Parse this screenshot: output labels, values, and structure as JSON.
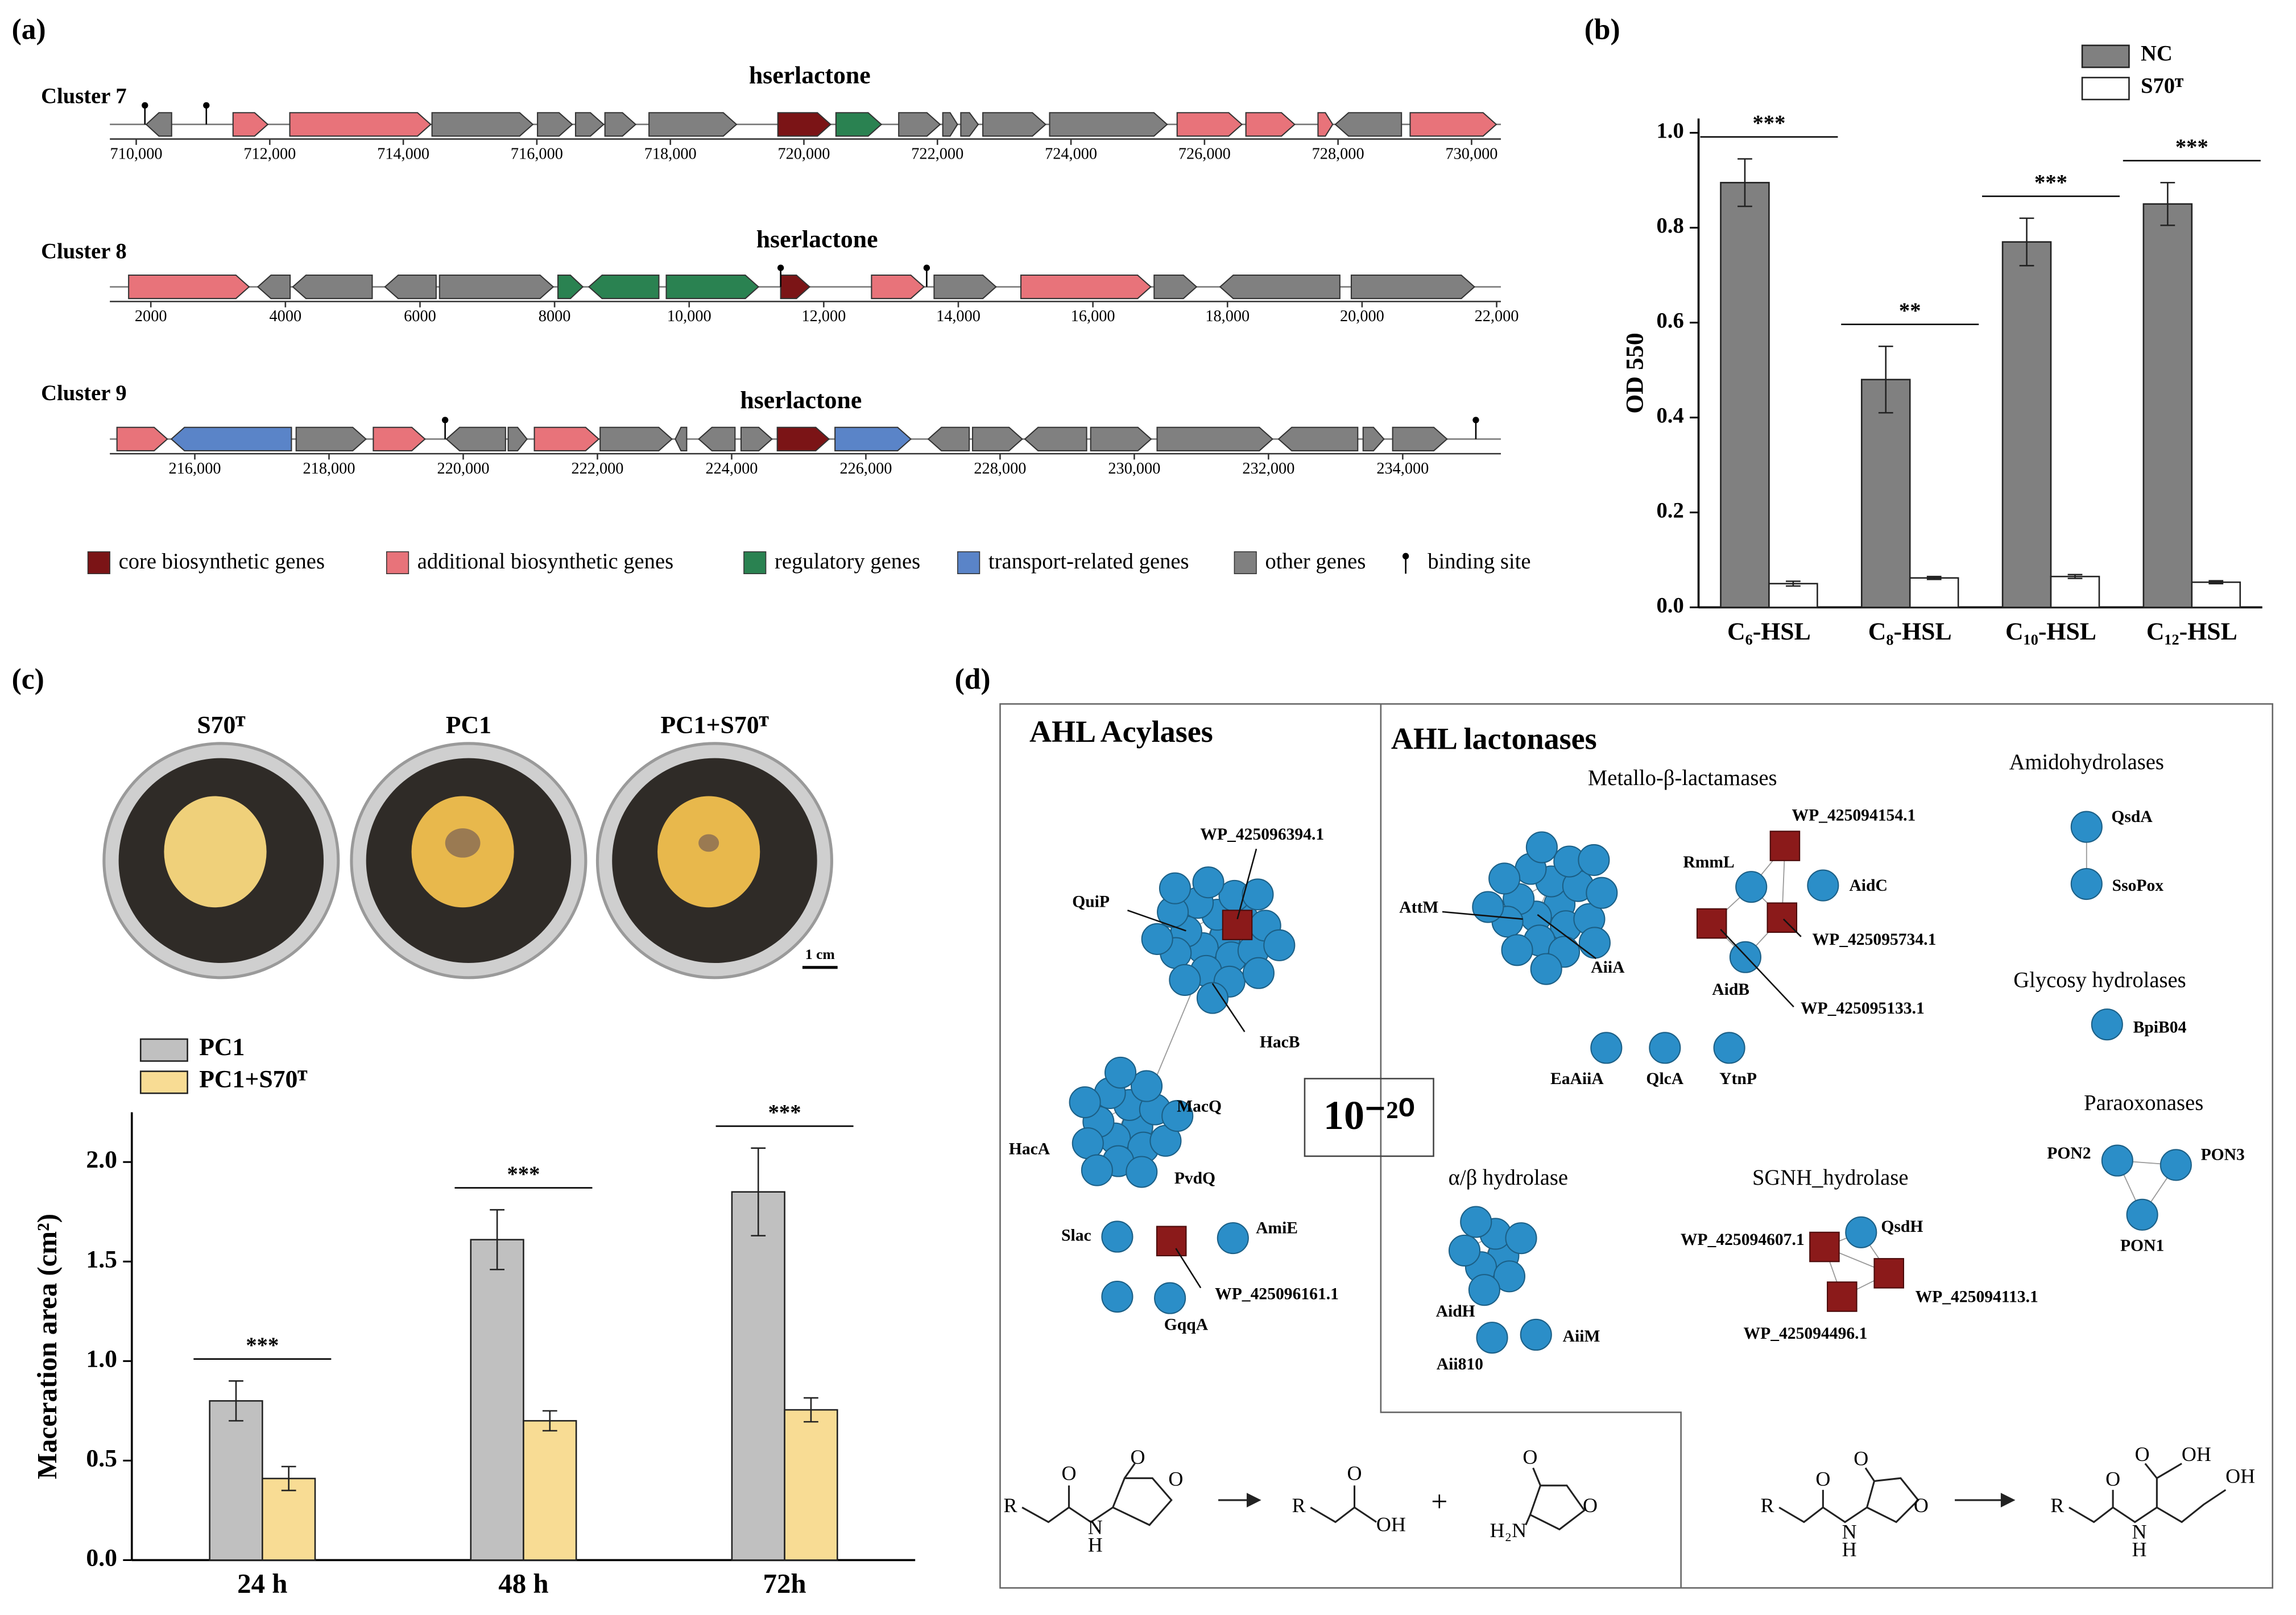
{
  "panel_labels": [
    "(a)",
    "(b)",
    "(c)",
    "(d)"
  ],
  "gene_clusters": {
    "categories": [
      {
        "name": "core biosynthetic genes",
        "color": "#7b1416"
      },
      {
        "name": "additional biosynthetic genes",
        "color": "#e8737a"
      },
      {
        "name": "regulatory genes",
        "color": "#2a8251"
      },
      {
        "name": "transport-related genes",
        "color": "#5a84c8"
      },
      {
        "name": "other genes",
        "color": "#808080"
      }
    ],
    "binding_label": "binding site",
    "clusters": [
      {
        "name": "Cluster 7",
        "title": "hserlactone",
        "xlim": [
          709605,
          730439
        ],
        "xticks": [
          {
            "value": 710000,
            "label": "710,000"
          },
          {
            "value": 712000,
            "label": "712,000"
          },
          {
            "value": 714000,
            "label": "714,000"
          },
          {
            "value": 716000,
            "label": "716,000"
          },
          {
            "value": 718000,
            "label": "718,000"
          },
          {
            "value": 720000,
            "label": "720,000"
          },
          {
            "value": 722000,
            "label": "722,000"
          },
          {
            "value": 724000,
            "label": "724,000"
          },
          {
            "value": 726000,
            "label": "726,000"
          },
          {
            "value": 728000,
            "label": "728,000"
          },
          {
            "value": 730000,
            "label": "730,000"
          }
        ],
        "genes": [
          [
            710150,
            710530,
            -1,
            4
          ],
          [
            711450,
            711970,
            1,
            1
          ],
          [
            712300,
            714410,
            1,
            1
          ],
          [
            714430,
            715940,
            1,
            4
          ],
          [
            716010,
            716530,
            1,
            4
          ],
          [
            716580,
            717000,
            1,
            4
          ],
          [
            717020,
            717480,
            1,
            4
          ],
          [
            717680,
            718990,
            1,
            4
          ],
          [
            719610,
            720400,
            1,
            0
          ],
          [
            720480,
            721160,
            1,
            2
          ],
          [
            721420,
            722040,
            1,
            4
          ],
          [
            722080,
            722300,
            1,
            4
          ],
          [
            722350,
            722610,
            1,
            4
          ],
          [
            722680,
            723620,
            1,
            4
          ],
          [
            723680,
            725440,
            1,
            4
          ],
          [
            725590,
            726560,
            1,
            1
          ],
          [
            726620,
            727350,
            1,
            1
          ],
          [
            727700,
            727920,
            1,
            1
          ],
          [
            727960,
            728950,
            -1,
            4
          ],
          [
            729080,
            730370,
            1,
            1
          ]
        ],
        "binding_sites": [
          710130,
          711050
        ]
      },
      {
        "name": "Cluster 8",
        "title": "hserlactone",
        "xlim": [
          1391,
          22063
        ],
        "xticks": [
          2000,
          4000,
          6000,
          8000,
          {
            "value": 10000,
            "label": "10,000"
          },
          {
            "value": 12000,
            "label": "12,000"
          },
          {
            "value": 14000,
            "label": "14,000"
          },
          {
            "value": 16000,
            "label": "16,000"
          },
          {
            "value": 18000,
            "label": "18,000"
          },
          {
            "value": 20000,
            "label": "20,000"
          },
          {
            "value": 22000,
            "label": "22,000"
          }
        ],
        "genes": [
          [
            1670,
            3460,
            1,
            1
          ],
          [
            3590,
            4070,
            -1,
            4
          ],
          [
            4110,
            5290,
            -1,
            4
          ],
          [
            5480,
            6240,
            -1,
            4
          ],
          [
            6290,
            7980,
            1,
            4
          ],
          [
            8050,
            8420,
            1,
            2
          ],
          [
            8510,
            9550,
            -1,
            2
          ],
          [
            9660,
            11030,
            1,
            2
          ],
          [
            11360,
            11790,
            1,
            0
          ],
          [
            12710,
            13490,
            1,
            1
          ],
          [
            13640,
            14560,
            1,
            4
          ],
          [
            14930,
            16860,
            1,
            1
          ],
          [
            16910,
            17540,
            1,
            4
          ],
          [
            17890,
            19670,
            -1,
            4
          ],
          [
            19840,
            21670,
            1,
            4
          ]
        ],
        "binding_sites": [
          11360,
          13530
        ]
      },
      {
        "name": "Cluster 9",
        "title": "hserlactone",
        "xlim": [
          214734,
          235463
        ],
        "xticks": [
          {
            "value": 216000,
            "label": "216,000"
          },
          {
            "value": 218000,
            "label": "218,000"
          },
          {
            "value": 220000,
            "label": "220,000"
          },
          {
            "value": 222000,
            "label": "222,000"
          },
          {
            "value": 224000,
            "label": "224,000"
          },
          {
            "value": 226000,
            "label": "226,000"
          },
          {
            "value": 228000,
            "label": "228,000"
          },
          {
            "value": 230000,
            "label": "230,000"
          },
          {
            "value": 232000,
            "label": "232,000"
          },
          {
            "value": 234000,
            "label": "234,000"
          }
        ],
        "genes": [
          [
            214840,
            215590,
            1,
            1
          ],
          [
            215650,
            217440,
            -1,
            3
          ],
          [
            217510,
            218550,
            1,
            4
          ],
          [
            218660,
            219430,
            1,
            1
          ],
          [
            219750,
            220630,
            -1,
            4
          ],
          [
            220670,
            220950,
            1,
            4
          ],
          [
            221060,
            222020,
            1,
            1
          ],
          [
            222040,
            223110,
            1,
            4
          ],
          [
            223160,
            223330,
            -1,
            4
          ],
          [
            223510,
            224050,
            -1,
            4
          ],
          [
            224140,
            224600,
            1,
            4
          ],
          [
            224680,
            225450,
            1,
            0
          ],
          [
            225540,
            226670,
            1,
            3
          ],
          [
            226930,
            227540,
            -1,
            4
          ],
          [
            227590,
            228330,
            1,
            4
          ],
          [
            228370,
            229290,
            -1,
            4
          ],
          [
            229350,
            230250,
            1,
            4
          ],
          [
            230340,
            232060,
            1,
            4
          ],
          [
            232150,
            233330,
            -1,
            4
          ],
          [
            233410,
            233720,
            1,
            4
          ],
          [
            233850,
            234660,
            1,
            4
          ]
        ],
        "binding_sites": [
          219730,
          235090
        ]
      }
    ]
  },
  "chart_data": [
    {
      "type": "bar",
      "ylabel": "OD 550",
      "categories": [
        "C₆-HSL",
        "C₈-HSL",
        "C₁₀-HSL",
        "C₁₂-HSL"
      ],
      "series": [
        {
          "name": "NC",
          "color": "#808080",
          "values": [
            0.895,
            0.48,
            0.77,
            0.85
          ],
          "errors": [
            0.05,
            0.07,
            0.05,
            0.045
          ]
        },
        {
          "name": "S70ᵀ",
          "color": "#ffffff",
          "values": [
            0.05,
            0.062,
            0.065,
            0.053
          ],
          "errors": [
            0.005,
            0.003,
            0.004,
            0.003
          ]
        }
      ],
      "significance": [
        "***",
        "**",
        "***",
        "***"
      ],
      "ylim": [
        0,
        1.03
      ],
      "yticks": [
        {
          "value": 0,
          "label": "0.0"
        },
        0.2,
        0.4,
        0.6,
        0.8,
        {
          "value": 1,
          "label": "1.0"
        }
      ],
      "legend": "top right"
    },
    {
      "type": "bar",
      "ylabel": "Maceration area (cm²)",
      "categories": [
        "24 h",
        "48 h",
        "72h"
      ],
      "series": [
        {
          "name": "PC1",
          "color": "#c0c0c0",
          "values": [
            0.8,
            1.61,
            1.85
          ],
          "errors": [
            0.1,
            0.15,
            0.22
          ]
        },
        {
          "name": "PC1+S70ᵀ",
          "color": "#f8dc94",
          "values": [
            0.41,
            0.7,
            0.755
          ],
          "errors": [
            0.06,
            0.05,
            0.06
          ]
        }
      ],
      "significance": [
        "***",
        "***",
        "***"
      ],
      "ylim": [
        0,
        2.25
      ],
      "yticks": [
        {
          "value": 0,
          "label": "0.0"
        },
        0.5,
        {
          "value": 1,
          "label": "1.0"
        },
        1.5,
        {
          "value": 2,
          "label": "2.0"
        }
      ],
      "legend": "top left"
    }
  ],
  "photos": {
    "labels": [
      "S70ᵀ",
      "PC1",
      "PC1+S70ᵀ"
    ],
    "scale_bar": "1 cm"
  },
  "network": {
    "sections": [
      "AHL Acylases",
      "AHL lactonases"
    ],
    "threshold": "10⁻²⁰",
    "families": [
      "Metallo-β-lactamases",
      "Amidohydrolases",
      "Glycosy hydrolases",
      "Paraoxonases",
      "α/β hydrolase",
      "SGNH_hydrolase"
    ],
    "node_labels": [
      "WP_425096394.1",
      "QuiP",
      "HacB",
      "MacQ",
      "HacA",
      "PvdQ",
      "Slac",
      "AmiE",
      "WP_425096161.1",
      "GqqA",
      "AttM",
      "AiiA",
      "WP_425094154.1",
      "RmmL",
      "AidC",
      "WP_425095734.1",
      "AidB",
      "WP_425095133.1",
      "EaAiiA",
      "QlcA",
      "YtnP",
      "QsdA",
      "SsoPox",
      "BpiB04",
      "PON2",
      "PON3",
      "PON1",
      "AidH",
      "AiiM",
      "Aii810",
      "QsdH",
      "WP_425094607.1",
      "WP_425094113.1",
      "WP_425094496.1"
    ],
    "reactions": [
      {
        "atoms": [
          "R",
          "O",
          "N",
          "H",
          "O",
          "O",
          "R",
          "O",
          "OH",
          "+",
          "O",
          "O",
          "H₂N"
        ]
      },
      {
        "atoms": [
          "R",
          "O",
          "N",
          "H",
          "O",
          "O",
          "R",
          "O",
          "N",
          "H",
          "O",
          "OH",
          "OH"
        ]
      }
    ]
  }
}
